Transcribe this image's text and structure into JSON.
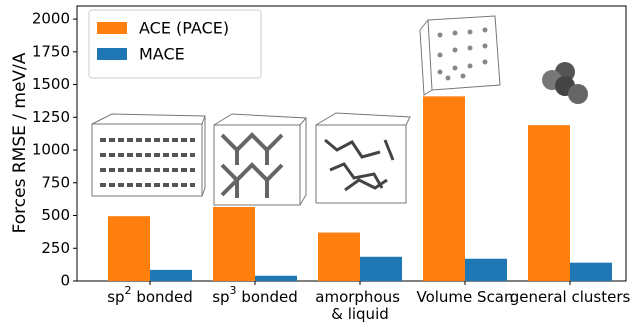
{
  "chart_data": {
    "type": "bar",
    "y_label": "Forces RMSE / meV/A",
    "categories": [
      "sp2 bonded",
      "sp3 bonded",
      "amorphous\n& liquid",
      "Volume Scan",
      "general clusters"
    ],
    "series": [
      {
        "name": "ACE (PACE)",
        "color": "#ff7f0e",
        "values": [
          495,
          565,
          370,
          1410,
          1190
        ]
      },
      {
        "name": "MACE",
        "color": "#1f77b4",
        "values": [
          85,
          40,
          185,
          170,
          140
        ]
      }
    ],
    "ylim": [
      0,
      2100
    ],
    "yticks": [
      0,
      250,
      500,
      750,
      1000,
      1250,
      1500,
      1750,
      2000
    ],
    "legend": "upper left"
  }
}
